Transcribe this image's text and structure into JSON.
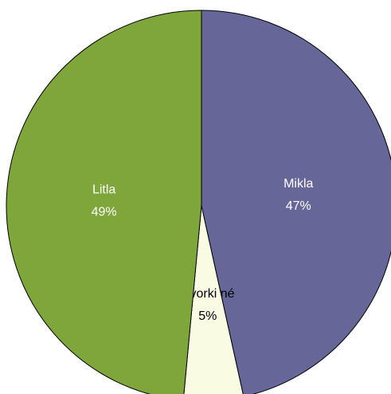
{
  "chart_data": {
    "type": "pie",
    "categories": [
      "Mikla",
      "Hvorki né",
      "Litla"
    ],
    "values": [
      47,
      5,
      49
    ],
    "value_labels": [
      "47%",
      "5%",
      "49%"
    ],
    "colors": [
      "#666699",
      "#f9fce3",
      "#7fa63a"
    ],
    "start_angle": 0,
    "direction": "clockwise"
  }
}
